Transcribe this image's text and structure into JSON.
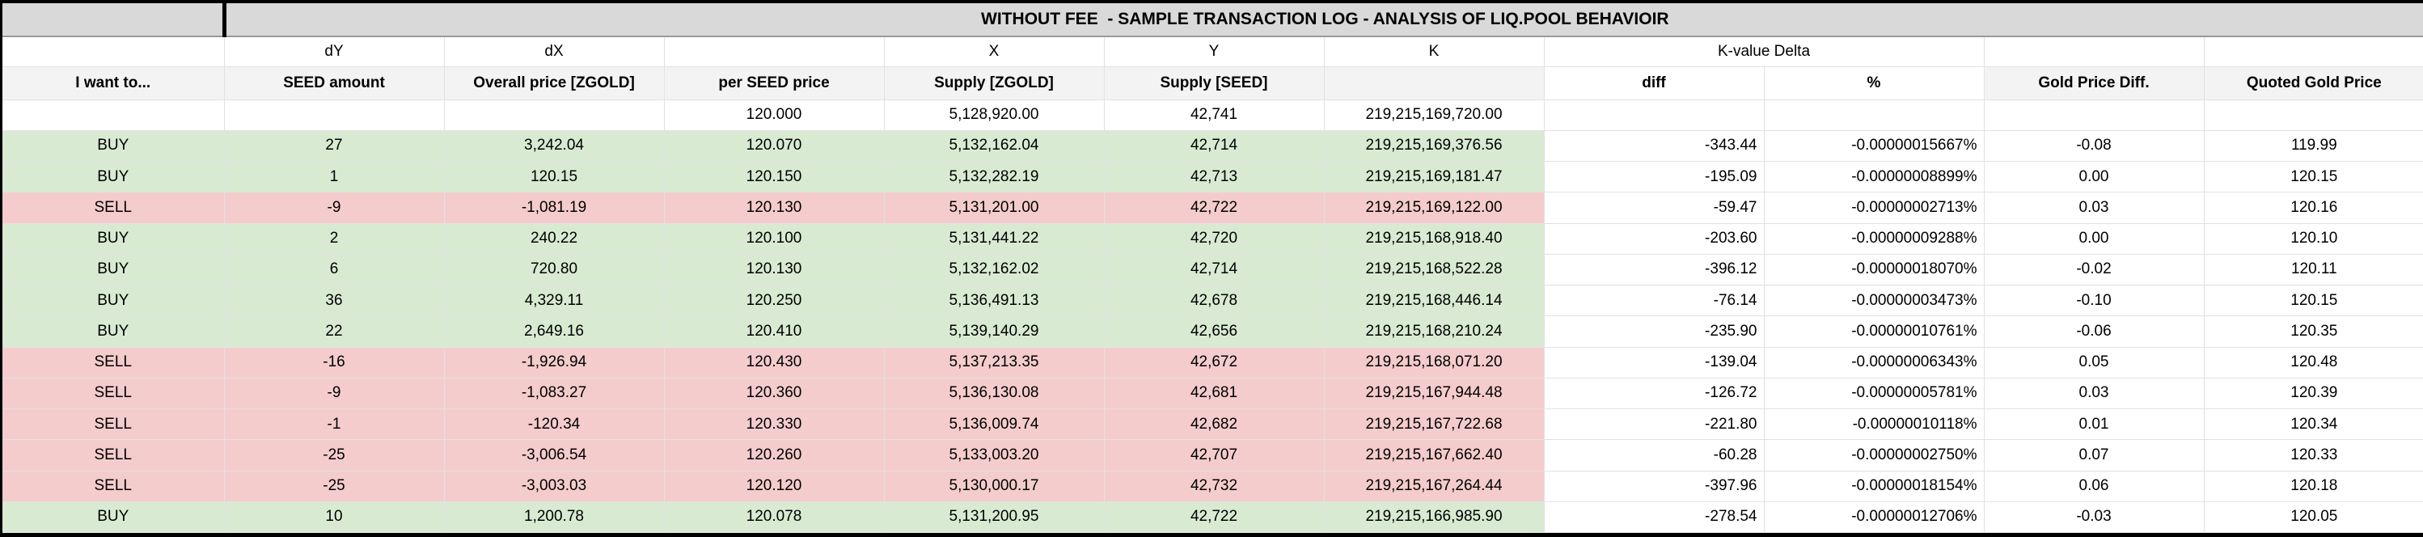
{
  "sheet": {
    "title": "WITHOUT FEE  - SAMPLE TRANSACTION LOG - ANALYSIS OF LIQ.POOL BEHAVIOIR",
    "formula_row": {
      "action": "",
      "seed_amount": "dY",
      "overall_price": "dX",
      "per_seed_price": "",
      "supply_zgold": "X",
      "supply_seed": "Y",
      "k": "K",
      "k_value_delta": "K-value Delta",
      "gold_price_diff": "",
      "quoted_gold_price": ""
    },
    "header_row": {
      "action": "I want to...",
      "seed_amount": "SEED amount",
      "overall_price": "Overall price [ZGOLD]",
      "per_seed_price": "per SEED price",
      "supply_zgold": "Supply [ZGOLD]",
      "supply_seed": "Supply [SEED]",
      "k": "",
      "diff": "diff",
      "pct": "%",
      "gold_price_diff": "Gold Price Diff.",
      "quoted_gold_price": "Quoted Gold Price"
    },
    "colors": {
      "title_bg": "#d9d9d9",
      "header_bg": "#f3f3f3",
      "buy_bg": "#d9ead3",
      "sell_bg": "#f4cccc",
      "gridline": "#e2e2e2",
      "frame": "#000000"
    },
    "rows": [
      {
        "type": "initial",
        "action": "",
        "seed_amount": "",
        "overall_price": "",
        "per_seed_price": "120.000",
        "supply_zgold": "5,128,920.00",
        "supply_seed": "42,741",
        "k": "219,215,169,720.00",
        "diff": "",
        "pct": "",
        "gold_price_diff": "",
        "quoted_gold_price": ""
      },
      {
        "type": "buy",
        "action": "BUY",
        "seed_amount": "27",
        "overall_price": "3,242.04",
        "per_seed_price": "120.070",
        "supply_zgold": "5,132,162.04",
        "supply_seed": "42,714",
        "k": "219,215,169,376.56",
        "diff": "-343.44",
        "pct": "-0.00000015667%",
        "gold_price_diff": "-0.08",
        "quoted_gold_price": "119.99"
      },
      {
        "type": "buy",
        "action": "BUY",
        "seed_amount": "1",
        "overall_price": "120.15",
        "per_seed_price": "120.150",
        "supply_zgold": "5,132,282.19",
        "supply_seed": "42,713",
        "k": "219,215,169,181.47",
        "diff": "-195.09",
        "pct": "-0.00000008899%",
        "gold_price_diff": "0.00",
        "quoted_gold_price": "120.15"
      },
      {
        "type": "sell",
        "action": "SELL",
        "seed_amount": "-9",
        "overall_price": "-1,081.19",
        "per_seed_price": "120.130",
        "supply_zgold": "5,131,201.00",
        "supply_seed": "42,722",
        "k": "219,215,169,122.00",
        "diff": "-59.47",
        "pct": "-0.00000002713%",
        "gold_price_diff": "0.03",
        "quoted_gold_price": "120.16"
      },
      {
        "type": "buy",
        "action": "BUY",
        "seed_amount": "2",
        "overall_price": "240.22",
        "per_seed_price": "120.100",
        "supply_zgold": "5,131,441.22",
        "supply_seed": "42,720",
        "k": "219,215,168,918.40",
        "diff": "-203.60",
        "pct": "-0.00000009288%",
        "gold_price_diff": "0.00",
        "quoted_gold_price": "120.10"
      },
      {
        "type": "buy",
        "action": "BUY",
        "seed_amount": "6",
        "overall_price": "720.80",
        "per_seed_price": "120.130",
        "supply_zgold": "5,132,162.02",
        "supply_seed": "42,714",
        "k": "219,215,168,522.28",
        "diff": "-396.12",
        "pct": "-0.00000018070%",
        "gold_price_diff": "-0.02",
        "quoted_gold_price": "120.11"
      },
      {
        "type": "buy",
        "action": "BUY",
        "seed_amount": "36",
        "overall_price": "4,329.11",
        "per_seed_price": "120.250",
        "supply_zgold": "5,136,491.13",
        "supply_seed": "42,678",
        "k": "219,215,168,446.14",
        "diff": "-76.14",
        "pct": "-0.00000003473%",
        "gold_price_diff": "-0.10",
        "quoted_gold_price": "120.15"
      },
      {
        "type": "buy",
        "action": "BUY",
        "seed_amount": "22",
        "overall_price": "2,649.16",
        "per_seed_price": "120.410",
        "supply_zgold": "5,139,140.29",
        "supply_seed": "42,656",
        "k": "219,215,168,210.24",
        "diff": "-235.90",
        "pct": "-0.00000010761%",
        "gold_price_diff": "-0.06",
        "quoted_gold_price": "120.35"
      },
      {
        "type": "sell",
        "action": "SELL",
        "seed_amount": "-16",
        "overall_price": "-1,926.94",
        "per_seed_price": "120.430",
        "supply_zgold": "5,137,213.35",
        "supply_seed": "42,672",
        "k": "219,215,168,071.20",
        "diff": "-139.04",
        "pct": "-0.00000006343%",
        "gold_price_diff": "0.05",
        "quoted_gold_price": "120.48"
      },
      {
        "type": "sell",
        "action": "SELL",
        "seed_amount": "-9",
        "overall_price": "-1,083.27",
        "per_seed_price": "120.360",
        "supply_zgold": "5,136,130.08",
        "supply_seed": "42,681",
        "k": "219,215,167,944.48",
        "diff": "-126.72",
        "pct": "-0.00000005781%",
        "gold_price_diff": "0.03",
        "quoted_gold_price": "120.39"
      },
      {
        "type": "sell",
        "action": "SELL",
        "seed_amount": "-1",
        "overall_price": "-120.34",
        "per_seed_price": "120.330",
        "supply_zgold": "5,136,009.74",
        "supply_seed": "42,682",
        "k": "219,215,167,722.68",
        "diff": "-221.80",
        "pct": "-0.00000010118%",
        "gold_price_diff": "0.01",
        "quoted_gold_price": "120.34"
      },
      {
        "type": "sell",
        "action": "SELL",
        "seed_amount": "-25",
        "overall_price": "-3,006.54",
        "per_seed_price": "120.260",
        "supply_zgold": "5,133,003.20",
        "supply_seed": "42,707",
        "k": "219,215,167,662.40",
        "diff": "-60.28",
        "pct": "-0.00000002750%",
        "gold_price_diff": "0.07",
        "quoted_gold_price": "120.33"
      },
      {
        "type": "sell",
        "action": "SELL",
        "seed_amount": "-25",
        "overall_price": "-3,003.03",
        "per_seed_price": "120.120",
        "supply_zgold": "5,130,000.17",
        "supply_seed": "42,732",
        "k": "219,215,167,264.44",
        "diff": "-397.96",
        "pct": "-0.00000018154%",
        "gold_price_diff": "0.06",
        "quoted_gold_price": "120.18"
      },
      {
        "type": "buy",
        "action": "BUY",
        "seed_amount": "10",
        "overall_price": "1,200.78",
        "per_seed_price": "120.078",
        "supply_zgold": "5,131,200.95",
        "supply_seed": "42,722",
        "k": "219,215,166,985.90",
        "diff": "-278.54",
        "pct": "-0.00000012706%",
        "gold_price_diff": "-0.03",
        "quoted_gold_price": "120.05"
      }
    ]
  }
}
